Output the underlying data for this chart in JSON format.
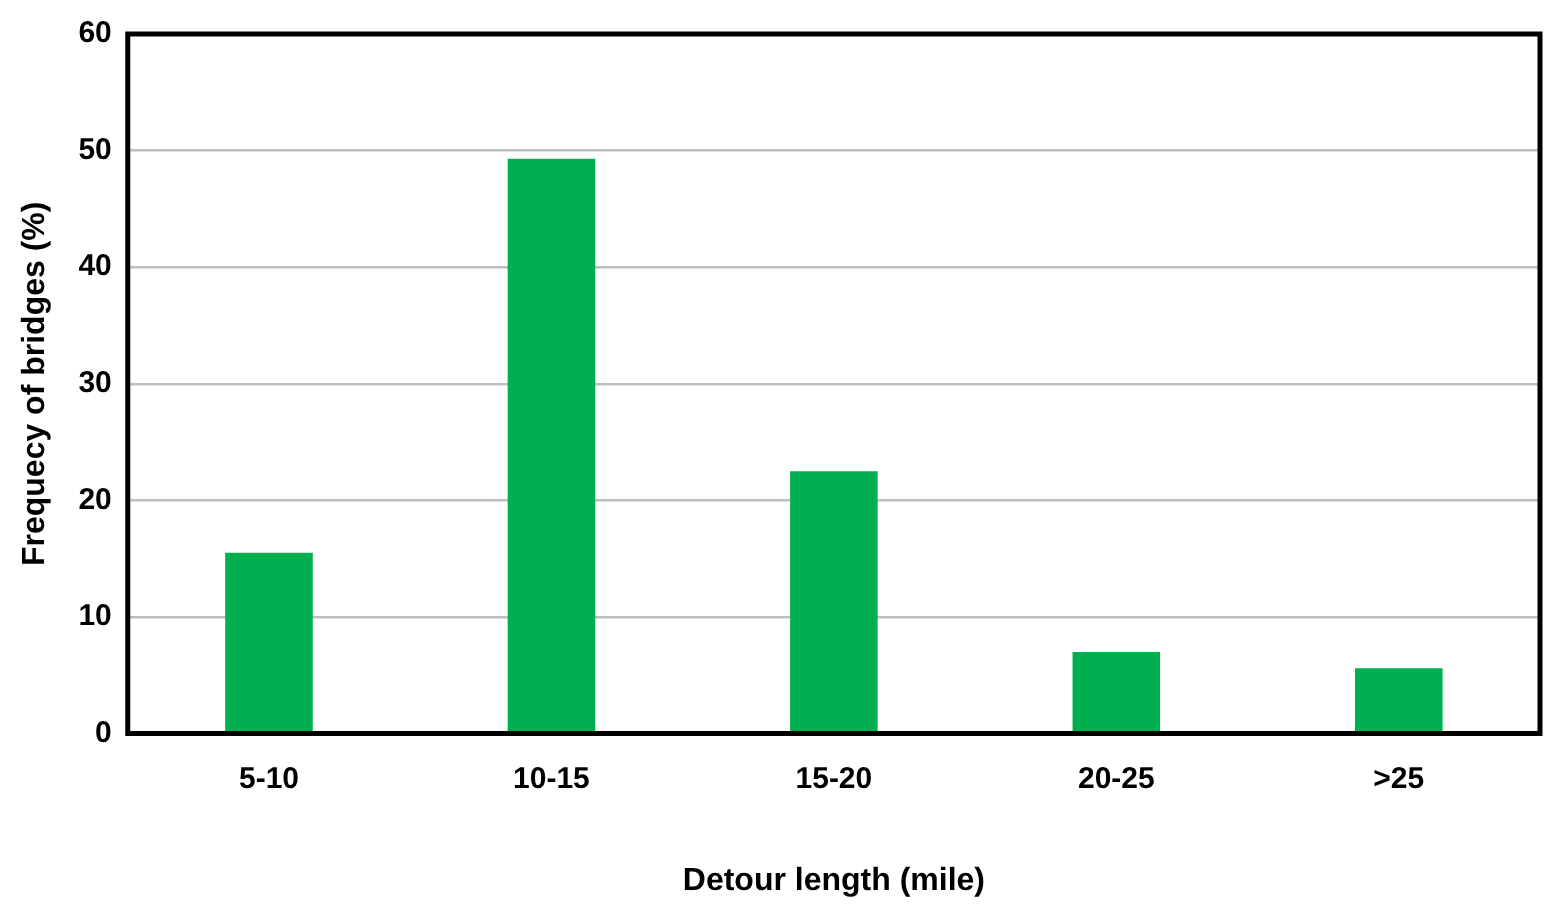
{
  "chart_data": {
    "type": "bar",
    "xlabel": "Detour length (mile)",
    "ylabel": "Frequecy of bridges (%)",
    "categories": [
      "5-10",
      "10-15",
      "15-20",
      "20-25",
      ">25"
    ],
    "values": [
      15.5,
      49.3,
      22.5,
      7.0,
      5.6
    ],
    "color": "#00b050",
    "ylim": [
      0,
      60
    ],
    "yticks": [
      0,
      10,
      20,
      30,
      40,
      50,
      60
    ],
    "grid": "y",
    "legend": false
  }
}
